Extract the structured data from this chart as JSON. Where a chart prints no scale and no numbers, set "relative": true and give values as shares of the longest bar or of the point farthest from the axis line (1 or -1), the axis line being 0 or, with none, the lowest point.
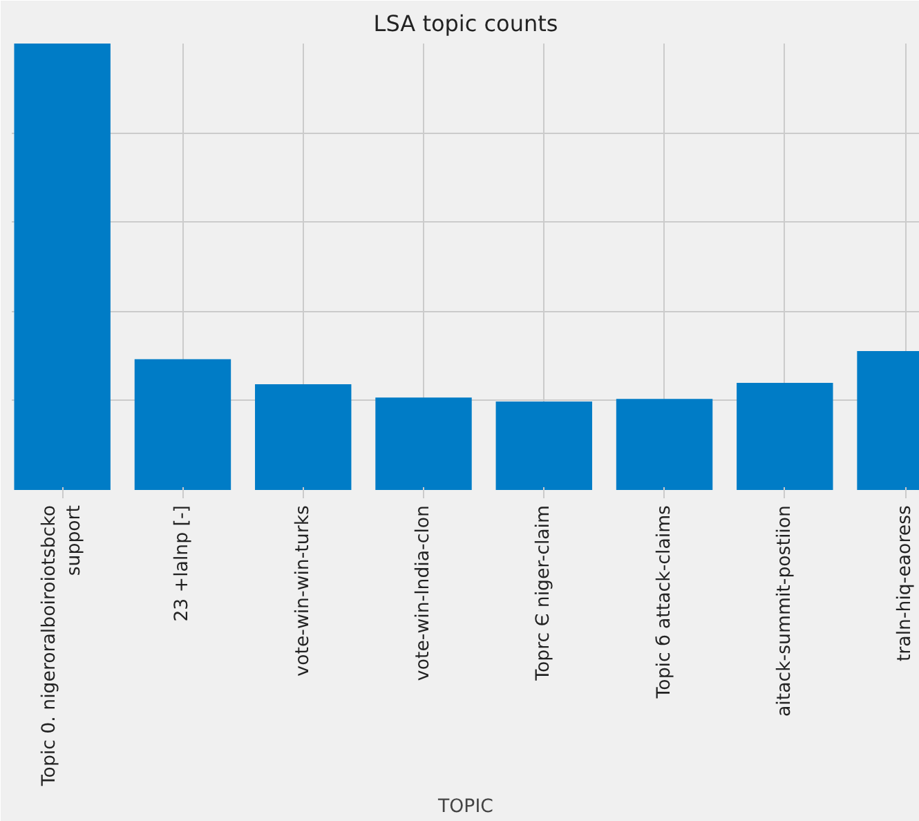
{
  "chart_data": {
    "type": "bar",
    "title": "LSA topic counts",
    "xlabel": "TOPIC",
    "categories": [
      "Topic 0. nigeroralboiroiotsbcko\nsupport",
      "23 +lalnp [-]",
      "vote-win-win-turks",
      "vote-win-lndia-clon",
      "Toprc Є niger-claim",
      "Topic б attack-claims",
      "aitack-summit-postiion",
      "traln-hiq-eaoress"
    ],
    "values": [
      1,
      0.293,
      0.237,
      0.207,
      0.198,
      0.204,
      0.24,
      0.311
    ],
    "color": "#007cc6",
    "relative": true,
    "grid": true
  }
}
